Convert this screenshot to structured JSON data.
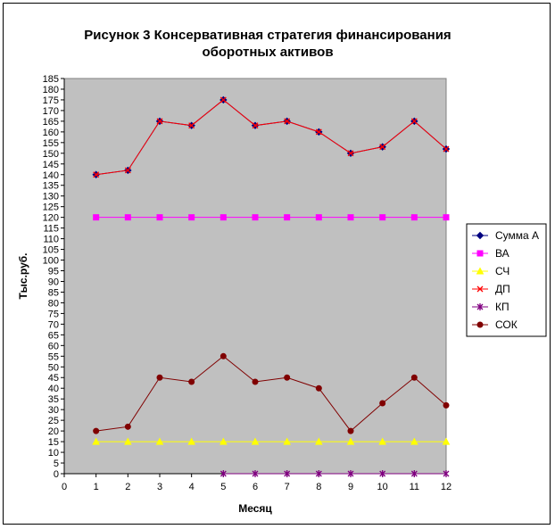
{
  "title_line1": "Рисунок  3  Консервативная стратегия финансирования",
  "title_line2": "оборотных активов",
  "chart_data": {
    "type": "line",
    "title": "Рисунок  3  Консервативная стратегия финансирования оборотных активов",
    "xlabel": "Месяц",
    "ylabel": "Тыс.руб.",
    "xlim": [
      0,
      12
    ],
    "ylim": [
      0,
      185
    ],
    "x_ticks": [
      0,
      1,
      2,
      3,
      4,
      5,
      6,
      7,
      8,
      9,
      10,
      11,
      12
    ],
    "y_tick_step": 5,
    "plot_background": "#c0c0c0",
    "grid": false,
    "legend_position": "right",
    "series": [
      {
        "name": "Сумма А",
        "color": "#000080",
        "marker": "diamond",
        "x": [
          1,
          2,
          3,
          4,
          5,
          6,
          7,
          8,
          9,
          10,
          11,
          12
        ],
        "values": [
          140,
          142,
          165,
          163,
          175,
          163,
          165,
          160,
          150,
          153,
          165,
          152
        ]
      },
      {
        "name": "ВА",
        "color": "#ff00ff",
        "marker": "square",
        "x": [
          1,
          2,
          3,
          4,
          5,
          6,
          7,
          8,
          9,
          10,
          11,
          12
        ],
        "values": [
          120,
          120,
          120,
          120,
          120,
          120,
          120,
          120,
          120,
          120,
          120,
          120
        ]
      },
      {
        "name": "СЧ",
        "color": "#ffff00",
        "marker": "triangle",
        "x": [
          1,
          2,
          3,
          4,
          5,
          6,
          7,
          8,
          9,
          10,
          11,
          12
        ],
        "values": [
          15,
          15,
          15,
          15,
          15,
          15,
          15,
          15,
          15,
          15,
          15,
          15
        ]
      },
      {
        "name": "ДП",
        "color": "#ff0000",
        "marker": "x",
        "x": [
          1,
          2,
          3,
          4,
          5,
          6,
          7,
          8,
          9,
          10,
          11,
          12
        ],
        "values": [
          140,
          142,
          165,
          163,
          175,
          163,
          165,
          160,
          150,
          153,
          165,
          152
        ]
      },
      {
        "name": "КП",
        "color": "#800080",
        "marker": "star",
        "x": [
          5,
          6,
          7,
          8,
          9,
          10,
          11,
          12
        ],
        "values": [
          0,
          0,
          0,
          0,
          0,
          0,
          0,
          0
        ]
      },
      {
        "name": "СОК",
        "color": "#800000",
        "marker": "circle",
        "x": [
          1,
          2,
          3,
          4,
          5,
          6,
          7,
          8,
          9,
          10,
          11,
          12
        ],
        "values": [
          20,
          22,
          45,
          43,
          55,
          43,
          45,
          40,
          20,
          33,
          45,
          32
        ]
      }
    ]
  }
}
